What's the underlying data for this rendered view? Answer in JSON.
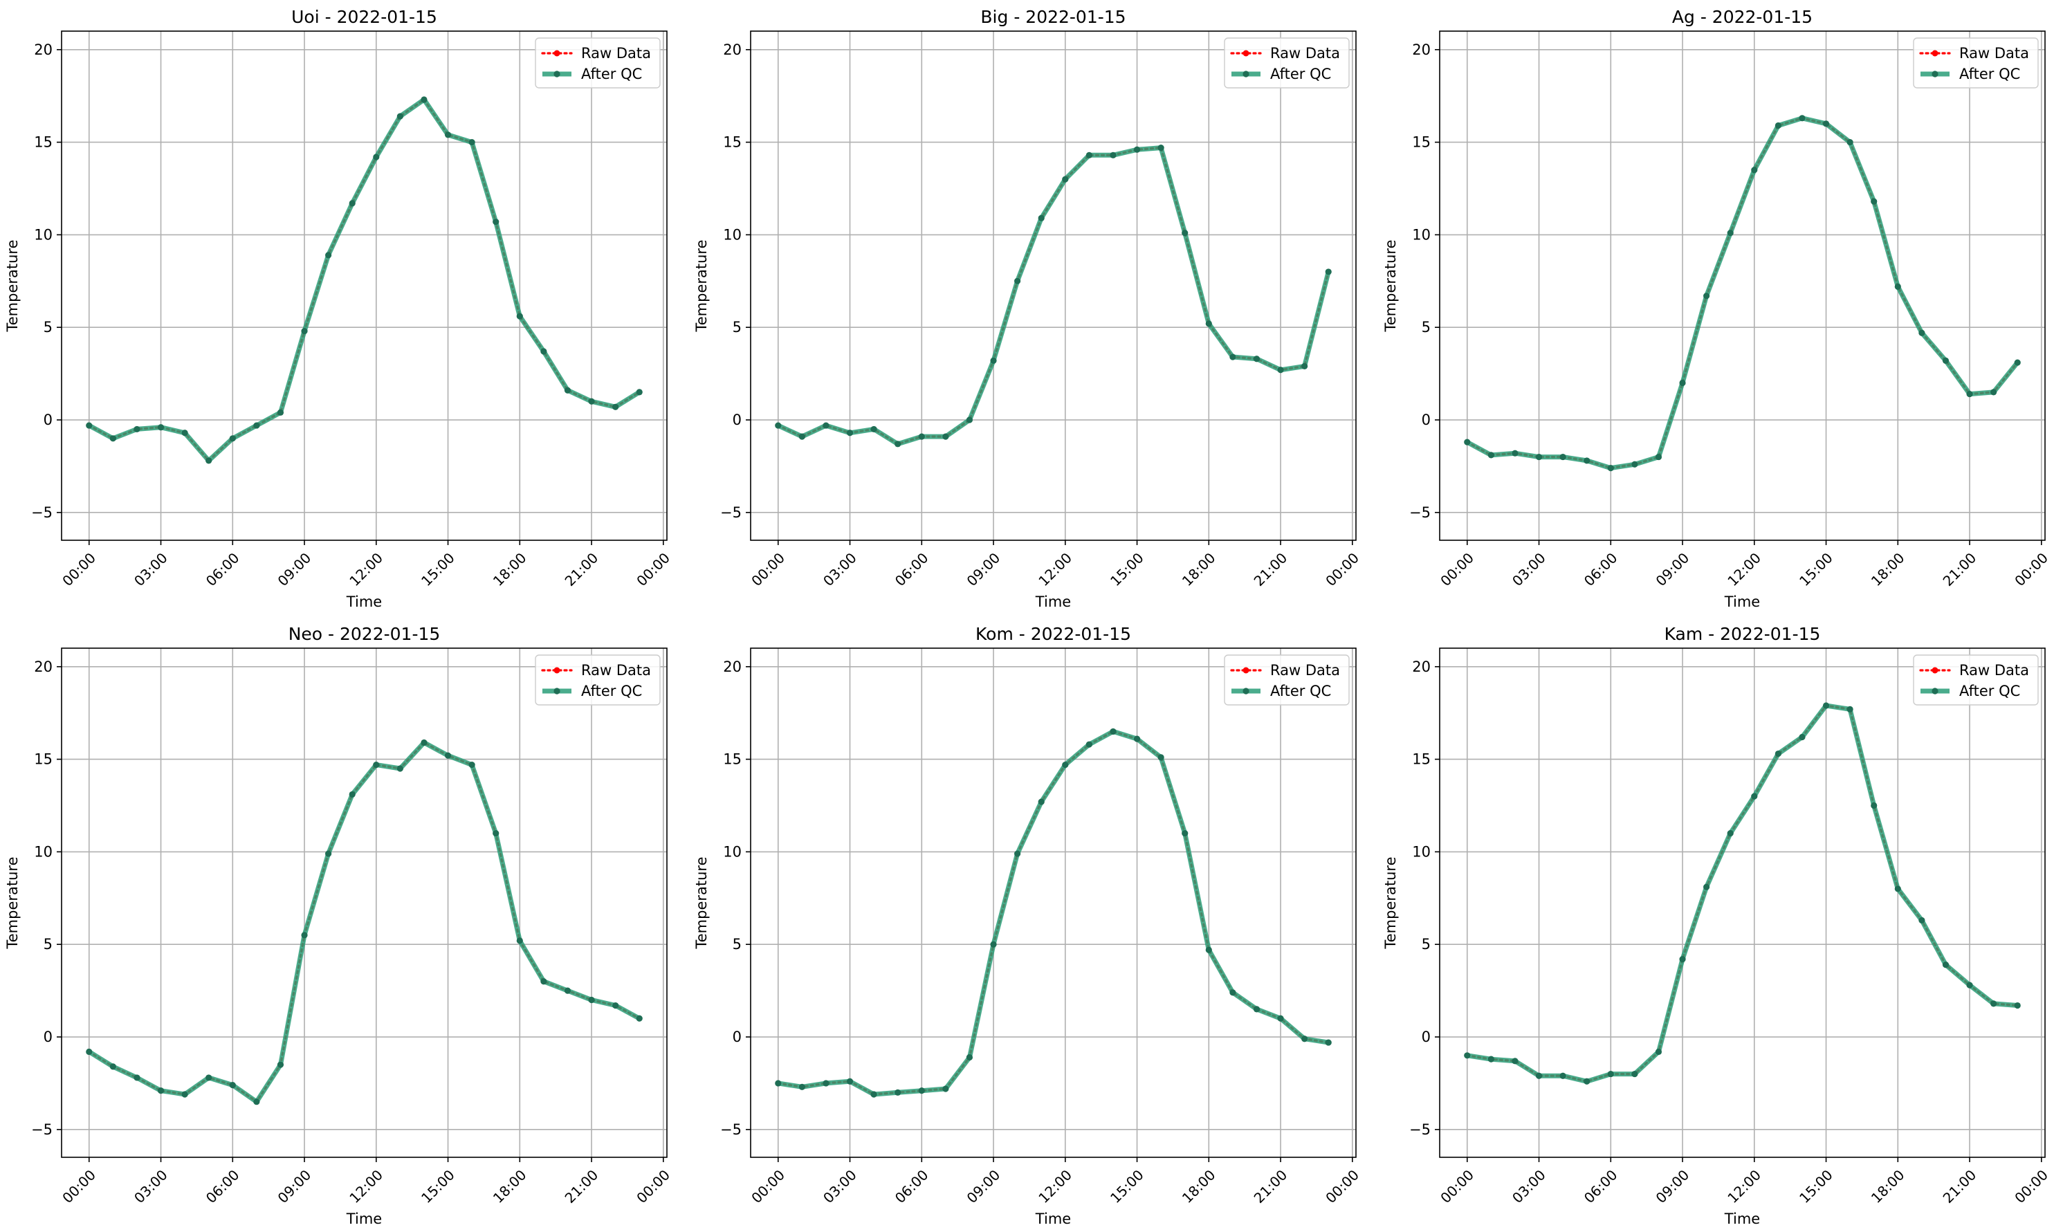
{
  "legend_labels": {
    "raw": "Raw Data",
    "qc": "After QC"
  },
  "colors": {
    "raw": "#ff0000",
    "qc": "#2a9d78",
    "marker": "#1f6e55",
    "grid": "#b0b0b0",
    "axis": "#000000"
  },
  "chart_data": [
    {
      "type": "line",
      "title": "Uoi - 2022-01-15",
      "xlabel": "Time",
      "ylabel": "Temperature",
      "xlim": [
        -1.15,
        24.15
      ],
      "ylim": [
        -6.5,
        21
      ],
      "x_ticks": [
        0,
        3,
        6,
        9,
        12,
        15,
        18,
        21,
        24
      ],
      "x_tick_labels": [
        "00:00",
        "03:00",
        "06:00",
        "09:00",
        "12:00",
        "15:00",
        "18:00",
        "21:00",
        "00:00"
      ],
      "y_ticks": [
        -5,
        0,
        5,
        10,
        15,
        20
      ],
      "y_tick_labels": [
        "−5",
        "0",
        "5",
        "10",
        "15",
        "20"
      ],
      "grid": true,
      "legend_position": "top-right",
      "x": [
        0,
        1,
        2,
        3,
        4,
        5,
        6,
        7,
        8,
        9,
        10,
        11,
        12,
        13,
        14,
        15,
        16,
        17,
        18,
        19,
        20,
        21,
        22,
        23
      ],
      "series": [
        {
          "name": "Raw Data",
          "values": [
            -0.3,
            -1.0,
            -0.5,
            -0.4,
            -0.7,
            -2.2,
            -1.0,
            -0.3,
            0.4,
            4.8,
            8.9,
            11.7,
            14.2,
            16.4,
            17.3,
            15.4,
            15.0,
            10.7,
            5.6,
            3.7,
            1.6,
            1.0,
            0.7,
            1.5
          ]
        },
        {
          "name": "After QC",
          "values": [
            -0.3,
            -1.0,
            -0.5,
            -0.4,
            -0.7,
            -2.2,
            -1.0,
            -0.3,
            0.4,
            4.8,
            8.9,
            11.7,
            14.2,
            16.4,
            17.3,
            15.4,
            15.0,
            10.7,
            5.6,
            3.7,
            1.6,
            1.0,
            0.7,
            1.5
          ]
        }
      ]
    },
    {
      "type": "line",
      "title": "Big - 2022-01-15",
      "xlabel": "Time",
      "ylabel": "Temperature",
      "xlim": [
        -1.15,
        24.15
      ],
      "ylim": [
        -6.5,
        21
      ],
      "x_ticks": [
        0,
        3,
        6,
        9,
        12,
        15,
        18,
        21,
        24
      ],
      "x_tick_labels": [
        "00:00",
        "03:00",
        "06:00",
        "09:00",
        "12:00",
        "15:00",
        "18:00",
        "21:00",
        "00:00"
      ],
      "y_ticks": [
        -5,
        0,
        5,
        10,
        15,
        20
      ],
      "y_tick_labels": [
        "−5",
        "0",
        "5",
        "10",
        "15",
        "20"
      ],
      "grid": true,
      "legend_position": "top-right",
      "x": [
        0,
        1,
        2,
        3,
        4,
        5,
        6,
        7,
        8,
        9,
        10,
        11,
        12,
        13,
        14,
        15,
        16,
        17,
        18,
        19,
        20,
        21,
        22,
        23
      ],
      "series": [
        {
          "name": "Raw Data",
          "values": [
            -0.3,
            -0.9,
            -0.3,
            -0.7,
            -0.5,
            -1.3,
            -0.9,
            -0.9,
            0.0,
            3.2,
            7.5,
            10.9,
            13.0,
            14.3,
            14.3,
            14.6,
            14.7,
            10.1,
            5.2,
            3.4,
            3.3,
            2.7,
            2.9,
            8.0
          ]
        },
        {
          "name": "After QC",
          "values": [
            -0.3,
            -0.9,
            -0.3,
            -0.7,
            -0.5,
            -1.3,
            -0.9,
            -0.9,
            0.0,
            3.2,
            7.5,
            10.9,
            13.0,
            14.3,
            14.3,
            14.6,
            14.7,
            10.1,
            5.2,
            3.4,
            3.3,
            2.7,
            2.9,
            8.0
          ]
        }
      ]
    },
    {
      "type": "line",
      "title": "Ag - 2022-01-15",
      "xlabel": "Time",
      "ylabel": "Temperature",
      "xlim": [
        -1.15,
        24.15
      ],
      "ylim": [
        -6.5,
        21
      ],
      "x_ticks": [
        0,
        3,
        6,
        9,
        12,
        15,
        18,
        21,
        24
      ],
      "x_tick_labels": [
        "00:00",
        "03:00",
        "06:00",
        "09:00",
        "12:00",
        "15:00",
        "18:00",
        "21:00",
        "00:00"
      ],
      "y_ticks": [
        -5,
        0,
        5,
        10,
        15,
        20
      ],
      "y_tick_labels": [
        "−5",
        "0",
        "5",
        "10",
        "15",
        "20"
      ],
      "grid": true,
      "legend_position": "top-right",
      "x": [
        0,
        1,
        2,
        3,
        4,
        5,
        6,
        7,
        8,
        9,
        10,
        11,
        12,
        13,
        14,
        15,
        16,
        17,
        18,
        19,
        20,
        21,
        22,
        23
      ],
      "series": [
        {
          "name": "Raw Data",
          "values": [
            -1.2,
            -1.9,
            -1.8,
            -2.0,
            -2.0,
            -2.2,
            -2.6,
            -2.4,
            -2.0,
            2.0,
            6.7,
            10.1,
            13.5,
            15.9,
            16.3,
            16.0,
            15.0,
            11.8,
            7.2,
            4.7,
            3.2,
            1.4,
            1.5,
            3.1
          ]
        },
        {
          "name": "After QC",
          "values": [
            -1.2,
            -1.9,
            -1.8,
            -2.0,
            -2.0,
            -2.2,
            -2.6,
            -2.4,
            -2.0,
            2.0,
            6.7,
            10.1,
            13.5,
            15.9,
            16.3,
            16.0,
            15.0,
            11.8,
            7.2,
            4.7,
            3.2,
            1.4,
            1.5,
            3.1
          ]
        }
      ]
    },
    {
      "type": "line",
      "title": "Neo - 2022-01-15",
      "xlabel": "Time",
      "ylabel": "Temperature",
      "xlim": [
        -1.15,
        24.15
      ],
      "ylim": [
        -6.5,
        21
      ],
      "x_ticks": [
        0,
        3,
        6,
        9,
        12,
        15,
        18,
        21,
        24
      ],
      "x_tick_labels": [
        "00:00",
        "03:00",
        "06:00",
        "09:00",
        "12:00",
        "15:00",
        "18:00",
        "21:00",
        "00:00"
      ],
      "y_ticks": [
        -5,
        0,
        5,
        10,
        15,
        20
      ],
      "y_tick_labels": [
        "−5",
        "0",
        "5",
        "10",
        "15",
        "20"
      ],
      "grid": true,
      "legend_position": "top-right",
      "x": [
        0,
        1,
        2,
        3,
        4,
        5,
        6,
        7,
        8,
        9,
        10,
        11,
        12,
        13,
        14,
        15,
        16,
        17,
        18,
        19,
        20,
        21,
        22,
        23
      ],
      "series": [
        {
          "name": "Raw Data",
          "values": [
            -0.8,
            -1.6,
            -2.2,
            -2.9,
            -3.1,
            -2.2,
            -2.6,
            -3.5,
            -1.5,
            5.5,
            9.9,
            13.1,
            14.7,
            14.5,
            15.9,
            15.2,
            14.7,
            11.0,
            5.2,
            3.0,
            2.5,
            2.0,
            1.7,
            1.0
          ]
        },
        {
          "name": "After QC",
          "values": [
            -0.8,
            -1.6,
            -2.2,
            -2.9,
            -3.1,
            -2.2,
            -2.6,
            -3.5,
            -1.5,
            5.5,
            9.9,
            13.1,
            14.7,
            14.5,
            15.9,
            15.2,
            14.7,
            11.0,
            5.2,
            3.0,
            2.5,
            2.0,
            1.7,
            1.0
          ]
        }
      ]
    },
    {
      "type": "line",
      "title": "Kom - 2022-01-15",
      "xlabel": "Time",
      "ylabel": "Temperature",
      "xlim": [
        -1.15,
        24.15
      ],
      "ylim": [
        -6.5,
        21
      ],
      "x_ticks": [
        0,
        3,
        6,
        9,
        12,
        15,
        18,
        21,
        24
      ],
      "x_tick_labels": [
        "00:00",
        "03:00",
        "06:00",
        "09:00",
        "12:00",
        "15:00",
        "18:00",
        "21:00",
        "00:00"
      ],
      "y_ticks": [
        -5,
        0,
        5,
        10,
        15,
        20
      ],
      "y_tick_labels": [
        "−5",
        "0",
        "5",
        "10",
        "15",
        "20"
      ],
      "grid": true,
      "legend_position": "top-right",
      "x": [
        0,
        1,
        2,
        3,
        4,
        5,
        6,
        7,
        8,
        9,
        10,
        11,
        12,
        13,
        14,
        15,
        16,
        17,
        18,
        19,
        20,
        21,
        22,
        23
      ],
      "series": [
        {
          "name": "Raw Data",
          "values": [
            -2.5,
            -2.7,
            -2.5,
            -2.4,
            -3.1,
            -3.0,
            -2.9,
            -2.8,
            -1.1,
            5.0,
            9.9,
            12.7,
            14.7,
            15.8,
            16.5,
            16.1,
            15.1,
            11.0,
            4.7,
            2.4,
            1.5,
            1.0,
            -0.1,
            -0.3
          ]
        },
        {
          "name": "After QC",
          "values": [
            -2.5,
            -2.7,
            -2.5,
            -2.4,
            -3.1,
            -3.0,
            -2.9,
            -2.8,
            -1.1,
            5.0,
            9.9,
            12.7,
            14.7,
            15.8,
            16.5,
            16.1,
            15.1,
            11.0,
            4.7,
            2.4,
            1.5,
            1.0,
            -0.1,
            -0.3
          ]
        }
      ]
    },
    {
      "type": "line",
      "title": "Kam - 2022-01-15",
      "xlabel": "Time",
      "ylabel": "Temperature",
      "xlim": [
        -1.15,
        24.15
      ],
      "ylim": [
        -6.5,
        21
      ],
      "x_ticks": [
        0,
        3,
        6,
        9,
        12,
        15,
        18,
        21,
        24
      ],
      "x_tick_labels": [
        "00:00",
        "03:00",
        "06:00",
        "09:00",
        "12:00",
        "15:00",
        "18:00",
        "21:00",
        "00:00"
      ],
      "y_ticks": [
        -5,
        0,
        5,
        10,
        15,
        20
      ],
      "y_tick_labels": [
        "−5",
        "0",
        "5",
        "10",
        "15",
        "20"
      ],
      "grid": true,
      "legend_position": "top-right",
      "x": [
        0,
        1,
        2,
        3,
        4,
        5,
        6,
        7,
        8,
        9,
        10,
        11,
        12,
        13,
        14,
        15,
        16,
        17,
        18,
        19,
        20,
        21,
        22,
        23
      ],
      "series": [
        {
          "name": "Raw Data",
          "values": [
            -1.0,
            -1.2,
            -1.3,
            -2.1,
            -2.1,
            -2.4,
            -2.0,
            -2.0,
            -0.8,
            4.2,
            8.1,
            11.0,
            13.0,
            15.3,
            16.2,
            17.9,
            17.7,
            12.5,
            8.0,
            6.3,
            3.9,
            2.8,
            1.8,
            1.7
          ]
        },
        {
          "name": "After QC",
          "values": [
            -1.0,
            -1.2,
            -1.3,
            -2.1,
            -2.1,
            -2.4,
            -2.0,
            -2.0,
            -0.8,
            4.2,
            8.1,
            11.0,
            13.0,
            15.3,
            16.2,
            17.9,
            17.7,
            12.5,
            8.0,
            6.3,
            3.9,
            2.8,
            1.8,
            1.7
          ]
        }
      ]
    }
  ]
}
